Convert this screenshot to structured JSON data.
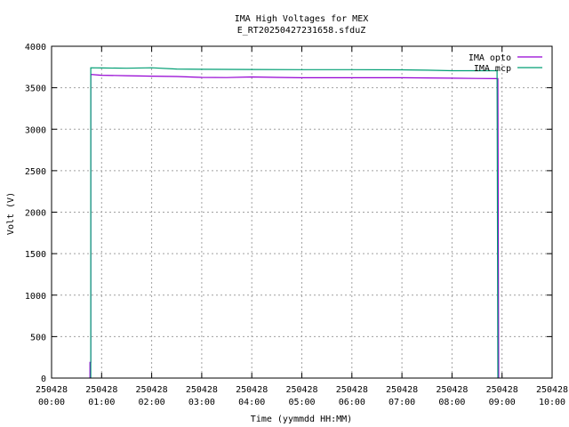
{
  "chart_data": {
    "type": "line",
    "title": "IMA High Voltages for MEX",
    "subtitle": "E_RT20250427231658.sfduZ",
    "xlabel": "Time (yymmdd HH:MM)",
    "ylabel": "Volt (V)",
    "xlim": [
      "250428 00:00",
      "250428 10:00"
    ],
    "ylim": [
      0,
      4000
    ],
    "x_tick_dates": [
      "250428",
      "250428",
      "250428",
      "250428",
      "250428",
      "250428",
      "250428",
      "250428",
      "250428",
      "250428",
      "250428"
    ],
    "x_tick_times": [
      "00:00",
      "01:00",
      "02:00",
      "03:00",
      "04:00",
      "05:00",
      "06:00",
      "07:00",
      "08:00",
      "09:00",
      "10:00"
    ],
    "y_ticks": [
      "0",
      "500",
      "1000",
      "1500",
      "2000",
      "2500",
      "3000",
      "3500",
      "4000"
    ],
    "grid": true,
    "legend_position": "top-right",
    "series": [
      {
        "name": "IMA opto",
        "color": "#9400d3",
        "points": [
          [
            "00:46",
            0
          ],
          [
            "00:46",
            190
          ],
          [
            "00:47",
            190
          ],
          [
            "00:47",
            3660
          ],
          [
            "01:00",
            3650
          ],
          [
            "01:30",
            3645
          ],
          [
            "02:00",
            3640
          ],
          [
            "02:30",
            3635
          ],
          [
            "03:00",
            3625
          ],
          [
            "03:30",
            3622
          ],
          [
            "04:00",
            3630
          ],
          [
            "04:30",
            3625
          ],
          [
            "05:00",
            3620
          ],
          [
            "06:00",
            3620
          ],
          [
            "07:00",
            3620
          ],
          [
            "08:00",
            3615
          ],
          [
            "08:30",
            3612
          ],
          [
            "08:55",
            3610
          ],
          [
            "08:56",
            0
          ]
        ]
      },
      {
        "name": "IMA mcp",
        "color": "#009e73",
        "points": [
          [
            "00:47",
            0
          ],
          [
            "00:47",
            3740
          ],
          [
            "01:00",
            3738
          ],
          [
            "01:30",
            3735
          ],
          [
            "02:00",
            3740
          ],
          [
            "02:30",
            3725
          ],
          [
            "03:00",
            3722
          ],
          [
            "04:00",
            3720
          ],
          [
            "05:00",
            3718
          ],
          [
            "06:00",
            3718
          ],
          [
            "07:00",
            3716
          ],
          [
            "07:30",
            3712
          ],
          [
            "08:00",
            3705
          ],
          [
            "08:30",
            3705
          ],
          [
            "08:54",
            3705
          ],
          [
            "08:55",
            0
          ]
        ]
      }
    ]
  }
}
